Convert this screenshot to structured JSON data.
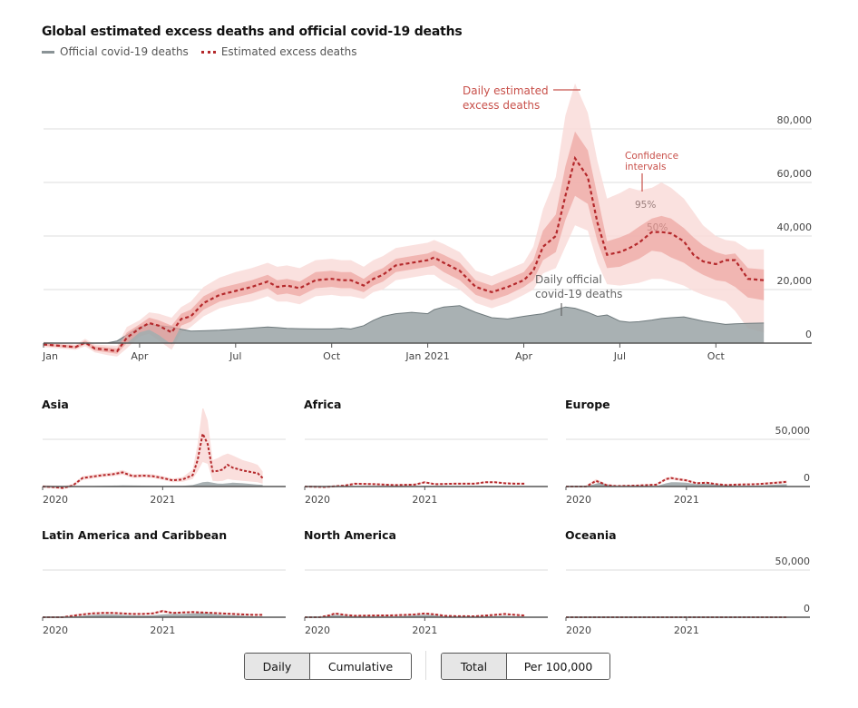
{
  "header": {
    "title": "Global estimated excess deaths and official covid-19 deaths",
    "legend": [
      {
        "label": "Official covid-19 deaths",
        "swatch": "grey-line"
      },
      {
        "label": "Estimated excess deaths",
        "swatch": "red-dotted-line"
      }
    ]
  },
  "colors": {
    "official": "#9aa3a6",
    "official_line": "#6f7a7d",
    "excess_line": "#b4282b",
    "ci95": "#f9dcd9",
    "ci50": "#eea7a3",
    "annotation": "#c8504a",
    "grid": "#dcdcdc",
    "axis": "#555555"
  },
  "controls": {
    "mode": [
      {
        "label": "Daily",
        "active": true
      },
      {
        "label": "Cumulative",
        "active": false
      }
    ],
    "scale": [
      {
        "label": "Total",
        "active": true
      },
      {
        "label": "Per 100,000",
        "active": false
      }
    ]
  },
  "chart_data": [
    {
      "type": "area",
      "id": "global",
      "title": "Global estimated excess deaths and official covid-19 deaths",
      "ylim": [
        0,
        80000
      ],
      "yticks": [
        {
          "v": 0,
          "label": "0"
        },
        {
          "v": 20000,
          "label": "20,000"
        },
        {
          "v": 40000,
          "label": "40,000"
        },
        {
          "v": 60000,
          "label": "60,000"
        },
        {
          "v": 80000,
          "label": "80,000"
        }
      ],
      "xlim": [
        0,
        22.5
      ],
      "xunit": "months since Jan 2020",
      "xticks": [
        {
          "v": 0,
          "label": "Jan"
        },
        {
          "v": 3,
          "label": "Apr"
        },
        {
          "v": 6,
          "label": "Jul"
        },
        {
          "v": 9,
          "label": "Oct"
        },
        {
          "v": 12,
          "label": "Jan 2021"
        },
        {
          "v": 15,
          "label": "Apr"
        },
        {
          "v": 18,
          "label": "Jul"
        },
        {
          "v": 21,
          "label": "Oct"
        }
      ],
      "grid": true,
      "annotations": [
        {
          "text": [
            "Daily estimated",
            "excess deaths"
          ],
          "target": "excess"
        },
        {
          "text": [
            "Confidence",
            "intervals"
          ],
          "target": "ci"
        },
        {
          "text": [
            "95%"
          ],
          "target": "ci95"
        },
        {
          "text": [
            "50%"
          ],
          "target": "ci50"
        },
        {
          "text": [
            "Daily official",
            "covid-19 deaths"
          ],
          "target": "official"
        }
      ],
      "x": [
        0,
        0.5,
        1,
        1.3,
        1.6,
        2,
        2.3,
        2.6,
        3,
        3.3,
        3.6,
        4,
        4.3,
        4.6,
        5,
        5.5,
        6,
        6.5,
        7,
        7.3,
        7.6,
        8,
        8.5,
        9,
        9.3,
        9.6,
        10,
        10.3,
        10.6,
        11,
        11.5,
        12,
        12.2,
        12.5,
        13,
        13.5,
        14,
        14.5,
        15,
        15.3,
        15.6,
        16,
        16.3,
        16.6,
        17,
        17.3,
        17.6,
        18,
        18.3,
        18.6,
        19,
        19.3,
        19.6,
        20,
        20.3,
        20.6,
        21,
        21.3,
        21.6,
        22,
        22.5
      ],
      "official": [
        0,
        0,
        0,
        0,
        0,
        100,
        800,
        3000,
        6000,
        7000,
        6500,
        6000,
        5200,
        4500,
        4600,
        4800,
        5200,
        5600,
        6000,
        5800,
        5500,
        5400,
        5300,
        5300,
        5600,
        5300,
        6500,
        8500,
        10000,
        11000,
        11500,
        11000,
        12500,
        13500,
        14000,
        11500,
        9500,
        9000,
        10000,
        10500,
        11000,
        12500,
        13500,
        13000,
        11500,
        10000,
        10500,
        8200,
        7800,
        8000,
        8600,
        9200,
        9500,
        9800,
        9000,
        8200,
        7500,
        7000,
        7200,
        7400,
        7500
      ],
      "excess": [
        -500,
        -1000,
        -1500,
        200,
        -2000,
        -2500,
        -3000,
        2000,
        5500,
        7500,
        6500,
        4000,
        9000,
        10000,
        15000,
        18000,
        19500,
        21000,
        23000,
        21000,
        21500,
        20500,
        23500,
        24000,
        23500,
        23500,
        21500,
        24000,
        25500,
        29000,
        30000,
        31000,
        32000,
        30000,
        27000,
        21000,
        19000,
        21000,
        23500,
        27000,
        36000,
        40000,
        55000,
        69000,
        62000,
        45000,
        33000,
        34000,
        35500,
        37500,
        41500,
        41500,
        41000,
        38000,
        33000,
        30500,
        29500,
        31000,
        31000,
        24000,
        23500
      ],
      "ci50_low": [
        -1000,
        -1500,
        -2000,
        -500,
        -2800,
        -3500,
        -4000,
        0,
        4000,
        5000,
        3000,
        -500,
        6500,
        8000,
        12500,
        15500,
        17000,
        18500,
        20500,
        18000,
        18500,
        17500,
        20500,
        21000,
        20500,
        20500,
        19000,
        21500,
        23000,
        26500,
        27500,
        28500,
        29000,
        26500,
        23500,
        18000,
        16000,
        18000,
        21000,
        23500,
        31000,
        34000,
        46000,
        55000,
        52000,
        38000,
        28000,
        28500,
        30000,
        31500,
        34500,
        34000,
        32000,
        30000,
        27500,
        25500,
        23500,
        23000,
        21000,
        17000,
        16000
      ],
      "ci50_high": [
        0,
        -500,
        -1000,
        900,
        -1200,
        -1600,
        -2000,
        4000,
        7000,
        9500,
        8500,
        6500,
        11000,
        12500,
        17500,
        20500,
        22000,
        23500,
        25500,
        23500,
        24000,
        23000,
        26500,
        27000,
        26500,
        26500,
        24000,
        26500,
        28000,
        31500,
        32500,
        33500,
        34500,
        33000,
        30000,
        23500,
        21500,
        24000,
        26500,
        31000,
        42000,
        48000,
        66000,
        79000,
        72000,
        55000,
        38000,
        39500,
        41000,
        43500,
        46500,
        47500,
        46500,
        43000,
        39500,
        36500,
        34000,
        33000,
        33500,
        28000,
        27500
      ],
      "ci95_low": [
        -1500,
        -2000,
        -2500,
        -1200,
        -3500,
        -4500,
        -5000,
        -2000,
        2500,
        3500,
        1000,
        -2500,
        4000,
        6000,
        10000,
        13000,
        14500,
        15500,
        17500,
        15500,
        15500,
        14500,
        17500,
        18000,
        17500,
        17500,
        16500,
        19000,
        20000,
        23500,
        24500,
        25500,
        25500,
        23000,
        20000,
        15000,
        13000,
        15000,
        18000,
        20000,
        26000,
        28000,
        36000,
        44000,
        42000,
        30000,
        22000,
        21500,
        22000,
        22500,
        24000,
        24000,
        23000,
        21500,
        19500,
        18000,
        16500,
        15500,
        12000,
        5500,
        4000
      ],
      "ci95_high": [
        500,
        0,
        -500,
        1600,
        -500,
        -800,
        -1000,
        6000,
        8500,
        11500,
        11000,
        9500,
        13500,
        15500,
        21000,
        24500,
        26500,
        28000,
        30000,
        28500,
        29000,
        28000,
        31000,
        31500,
        31000,
        31000,
        28500,
        31000,
        32500,
        35500,
        36500,
        37500,
        38500,
        37000,
        34000,
        27000,
        25000,
        27500,
        30000,
        36000,
        50000,
        62000,
        85000,
        97000,
        86000,
        68000,
        54000,
        56000,
        58000,
        57000,
        58000,
        60000,
        58000,
        54000,
        49000,
        44000,
        40000,
        38500,
        38000,
        35000,
        35000
      ]
    },
    {
      "type": "area",
      "id": "asia",
      "title": "Asia",
      "ylim": [
        0,
        50000
      ],
      "grid": true,
      "show_y_labels": false,
      "xticks": [
        {
          "v": 0,
          "label": "2020"
        },
        {
          "v": 12,
          "label": "2021"
        }
      ],
      "x": [
        0,
        1,
        2,
        3,
        4,
        5,
        6,
        7,
        8,
        9,
        10,
        11,
        12,
        13,
        14,
        15,
        15.5,
        16,
        16.5,
        17,
        17.5,
        18,
        18.5,
        19,
        20,
        21,
        21.5,
        22
      ],
      "official": [
        0,
        0,
        0,
        0,
        200,
        500,
        800,
        1000,
        1200,
        1100,
        1000,
        900,
        800,
        700,
        800,
        1500,
        3000,
        4500,
        5000,
        4000,
        3200,
        3000,
        3500,
        4000,
        3500,
        2500,
        2000,
        1800
      ],
      "excess": [
        0,
        -500,
        -1500,
        1000,
        9000,
        10500,
        12000,
        13000,
        15000,
        11000,
        11500,
        11000,
        9000,
        6500,
        7500,
        12000,
        28000,
        56000,
        45000,
        16000,
        16500,
        18000,
        23000,
        20000,
        17000,
        15000,
        14000,
        9000
      ],
      "ci_low": [
        -1500,
        -2000,
        -3000,
        -500,
        7000,
        8500,
        10000,
        11000,
        12500,
        9000,
        9500,
        9000,
        7000,
        4500,
        5000,
        8000,
        16000,
        26000,
        24000,
        6000,
        5500,
        6000,
        8000,
        7000,
        6000,
        5000,
        4500,
        3000
      ],
      "ci_high": [
        1500,
        1000,
        500,
        2500,
        11000,
        12500,
        14000,
        15000,
        17500,
        13000,
        13500,
        13000,
        11000,
        8500,
        10000,
        18000,
        45000,
        85000,
        70000,
        28000,
        30000,
        33000,
        35000,
        33000,
        28000,
        25000,
        23000,
        16000
      ]
    },
    {
      "type": "area",
      "id": "africa",
      "title": "Africa",
      "ylim": [
        0,
        50000
      ],
      "grid": true,
      "show_y_labels": false,
      "xticks": [
        {
          "v": 0,
          "label": "2020"
        },
        {
          "v": 12,
          "label": "2021"
        }
      ],
      "x": [
        0,
        2,
        4,
        5,
        7,
        9,
        11,
        12,
        13,
        15,
        17,
        18,
        19,
        20,
        21,
        22
      ],
      "official": [
        0,
        0,
        200,
        300,
        400,
        300,
        400,
        800,
        700,
        500,
        600,
        900,
        800,
        600,
        500,
        400
      ],
      "excess": [
        0,
        -500,
        1000,
        3000,
        2500,
        1500,
        2000,
        4500,
        2500,
        3000,
        3000,
        4500,
        4500,
        3500,
        3000,
        3000
      ],
      "ci_low": [
        -1000,
        -1500,
        0,
        2000,
        1500,
        500,
        1000,
        3500,
        1500,
        2000,
        2000,
        3500,
        3500,
        2500,
        2000,
        2000
      ],
      "ci_high": [
        1000,
        500,
        2000,
        4000,
        3500,
        2500,
        3000,
        5500,
        3500,
        4000,
        4000,
        5500,
        5500,
        4500,
        4000,
        4000
      ]
    },
    {
      "type": "area",
      "id": "europe",
      "title": "Europe",
      "ylim": [
        0,
        50000
      ],
      "grid": true,
      "show_y_labels": true,
      "yticks": [
        {
          "v": 0,
          "label": "0"
        },
        {
          "v": 50000,
          "label": "50,000"
        }
      ],
      "xticks": [
        {
          "v": 0,
          "label": "2020"
        },
        {
          "v": 12,
          "label": "2021"
        }
      ],
      "x": [
        0,
        2,
        3,
        3.5,
        4,
        5,
        7,
        9,
        10,
        10.5,
        11,
        12,
        13,
        14,
        15,
        16,
        17,
        19,
        21,
        22
      ],
      "official": [
        0,
        0,
        3000,
        4500,
        2000,
        500,
        400,
        500,
        3500,
        4500,
        4500,
        4000,
        2500,
        3000,
        2000,
        1200,
        800,
        1000,
        2000,
        2500
      ],
      "excess": [
        0,
        0,
        6000,
        4000,
        1500,
        500,
        1000,
        2000,
        8000,
        9000,
        8000,
        6500,
        3500,
        4000,
        2500,
        1500,
        2000,
        2500,
        4000,
        5000
      ],
      "ci_low": [
        -1000,
        -1000,
        4000,
        2500,
        0,
        -500,
        0,
        1000,
        6500,
        7500,
        6500,
        5000,
        2500,
        2800,
        1500,
        500,
        1000,
        1500,
        2500,
        3500
      ],
      "ci_high": [
        1000,
        1000,
        8000,
        5500,
        3000,
        1500,
        2000,
        3000,
        9500,
        10500,
        9500,
        8000,
        4500,
        5200,
        3500,
        2500,
        3000,
        3500,
        5500,
        6500
      ]
    },
    {
      "type": "area",
      "id": "latam",
      "title": "Latin America and Caribbean",
      "ylim": [
        0,
        50000
      ],
      "grid": true,
      "show_y_labels": false,
      "xticks": [
        {
          "v": 0,
          "label": "2020"
        },
        {
          "v": 12,
          "label": "2021"
        }
      ],
      "x": [
        0,
        2,
        3,
        4,
        5,
        6,
        7,
        8,
        9,
        10,
        11,
        12,
        13,
        14,
        15,
        16,
        17,
        18,
        19,
        20,
        21,
        22
      ],
      "official": [
        0,
        0,
        500,
        1500,
        2500,
        3000,
        3000,
        2500,
        2000,
        1800,
        2000,
        3000,
        3500,
        3500,
        4000,
        4500,
        3500,
        2500,
        2000,
        1500,
        1000,
        800
      ],
      "excess": [
        0,
        0,
        1500,
        3000,
        4000,
        4500,
        4500,
        4000,
        3500,
        3500,
        4000,
        6500,
        4500,
        5000,
        5500,
        5000,
        4500,
        4000,
        3500,
        3000,
        2500,
        2500
      ],
      "ci_low": [
        -1000,
        -1000,
        500,
        2000,
        3000,
        3500,
        3500,
        3000,
        2500,
        2500,
        3000,
        5000,
        3500,
        4000,
        4500,
        4000,
        3500,
        3000,
        2500,
        2000,
        1500,
        1500
      ],
      "ci_high": [
        1000,
        1000,
        2500,
        4000,
        5000,
        5500,
        5500,
        5000,
        4500,
        4500,
        5000,
        8000,
        5500,
        6000,
        6500,
        6000,
        5500,
        5000,
        4500,
        4000,
        3500,
        3500
      ]
    },
    {
      "type": "area",
      "id": "north-america",
      "title": "North America",
      "ylim": [
        0,
        50000
      ],
      "grid": true,
      "show_y_labels": false,
      "xticks": [
        {
          "v": 0,
          "label": "2020"
        },
        {
          "v": 12,
          "label": "2021"
        }
      ],
      "x": [
        0,
        1.5,
        2.5,
        3,
        4,
        5,
        7,
        9,
        11,
        12,
        13,
        14,
        15,
        17,
        19,
        20,
        21,
        22
      ],
      "official": [
        0,
        0,
        1500,
        2500,
        1500,
        800,
        800,
        800,
        2000,
        2800,
        2000,
        800,
        500,
        400,
        1200,
        1500,
        1000,
        600
      ],
      "excess": [
        0,
        0,
        2000,
        4000,
        2500,
        1500,
        1800,
        2000,
        3000,
        4000,
        3000,
        1500,
        1200,
        1000,
        2500,
        3500,
        2500,
        1800
      ],
      "ci_low": [
        -500,
        -500,
        1000,
        3000,
        1800,
        800,
        1000,
        1200,
        2200,
        3200,
        2200,
        800,
        500,
        300,
        1700,
        2700,
        1700,
        1000
      ],
      "ci_high": [
        500,
        500,
        3000,
        5000,
        3200,
        2200,
        2600,
        2800,
        3800,
        4800,
        3800,
        2200,
        1900,
        1700,
        3300,
        4300,
        3300,
        2600
      ]
    },
    {
      "type": "area",
      "id": "oceania",
      "title": "Oceania",
      "ylim": [
        0,
        50000
      ],
      "grid": true,
      "show_y_labels": true,
      "yticks": [
        {
          "v": 0,
          "label": "0"
        },
        {
          "v": 50000,
          "label": "50,000"
        }
      ],
      "xticks": [
        {
          "v": 0,
          "label": "2020"
        },
        {
          "v": 12,
          "label": "2021"
        }
      ],
      "x": [
        0,
        22
      ],
      "official": [
        0,
        0
      ],
      "excess": [
        0,
        0
      ],
      "ci_low": [
        -200,
        -200
      ],
      "ci_high": [
        200,
        200
      ]
    }
  ]
}
